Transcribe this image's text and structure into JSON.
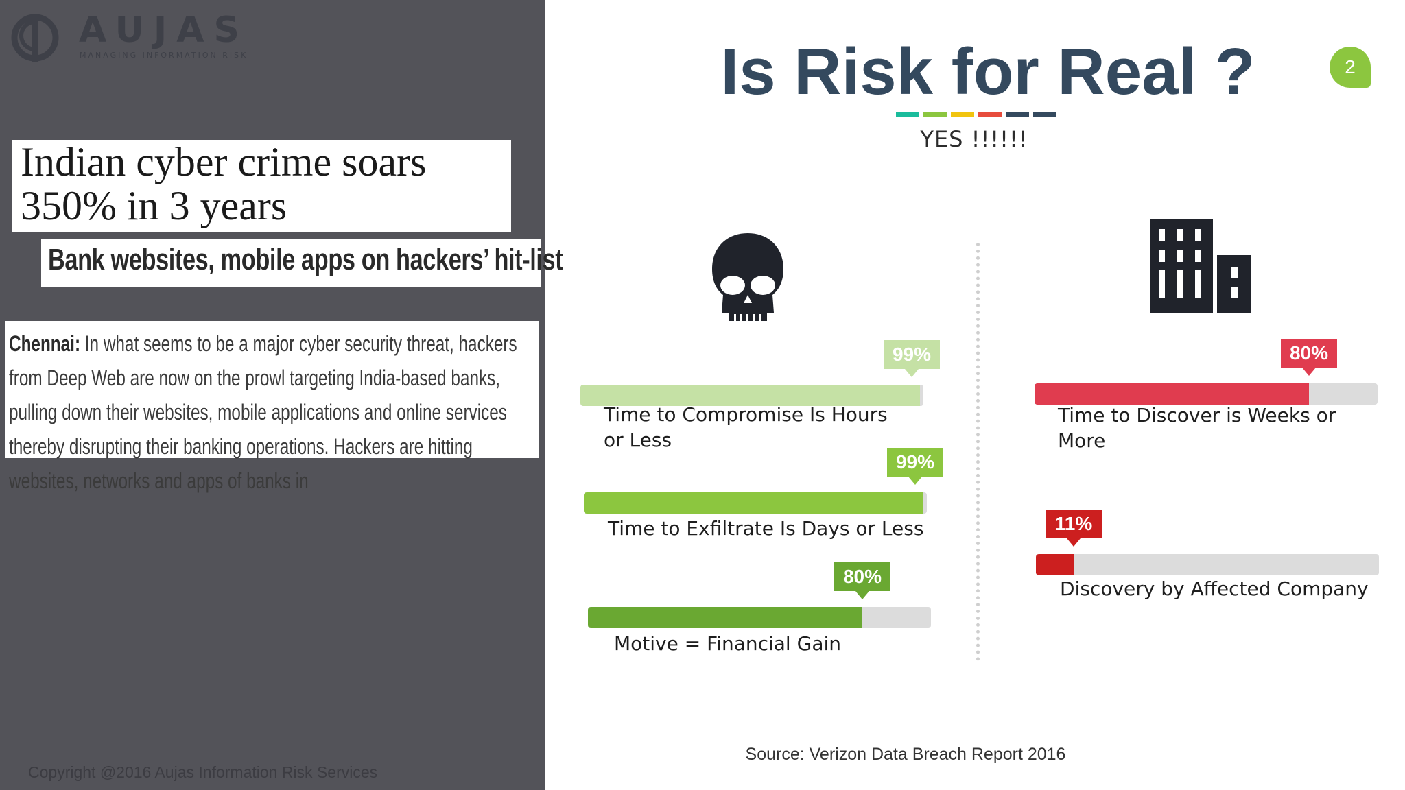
{
  "logo": {
    "name": "AUJAS",
    "tagline": "MANAGING INFORMATION RISK"
  },
  "news": {
    "headline": "Indian cyber crime soars 350% in 3 years",
    "subheadline": "Bank websites, mobile apps on hackers’ hit-list",
    "dateline": "Chennai:",
    "body": "In what seems to be a major cyber security threat, hackers from Deep Web are now on the prowl targeting India-based banks, pulling down their websites, mobile applications and online services thereby disrupting their banking operations. Hackers are hitting websites, networks and apps of banks in"
  },
  "copyright": "Copyright @2016  Aujas Information Risk Services",
  "slide": {
    "title": "Is Risk for Real ?",
    "answer": "YES !!!!!!",
    "page_number": "2",
    "source": "Source: Verizon Data Breach Report 2016",
    "accent_colors": [
      "#1abc9c",
      "#8cc63f",
      "#f1c40f",
      "#e74c3c",
      "#34495e",
      "#34495e"
    ],
    "icons": {
      "left": "skull-icon",
      "right": "building-icon"
    }
  },
  "chart_data": {
    "type": "bar",
    "groups": [
      {
        "icon": "skull-icon",
        "metrics": [
          {
            "label": "Time to Compromise Is Hours or Less",
            "value": 99,
            "display": "99%",
            "color": "#c5e1a5"
          },
          {
            "label": "Time to Exfiltrate Is Days or Less",
            "value": 99,
            "display": "99%",
            "color": "#8cc63f"
          },
          {
            "label": "Motive = Financial Gain",
            "value": 80,
            "display": "80%",
            "color": "#6aa832"
          }
        ]
      },
      {
        "icon": "building-icon",
        "metrics": [
          {
            "label": "Time to Discover is Weeks or More",
            "value": 80,
            "display": "80%",
            "color": "#e03c4f"
          },
          {
            "label": "Discovery by Affected Company",
            "value": 11,
            "display": "11%",
            "color": "#cc1f1f"
          }
        ]
      }
    ],
    "ylim": [
      0,
      100
    ]
  }
}
